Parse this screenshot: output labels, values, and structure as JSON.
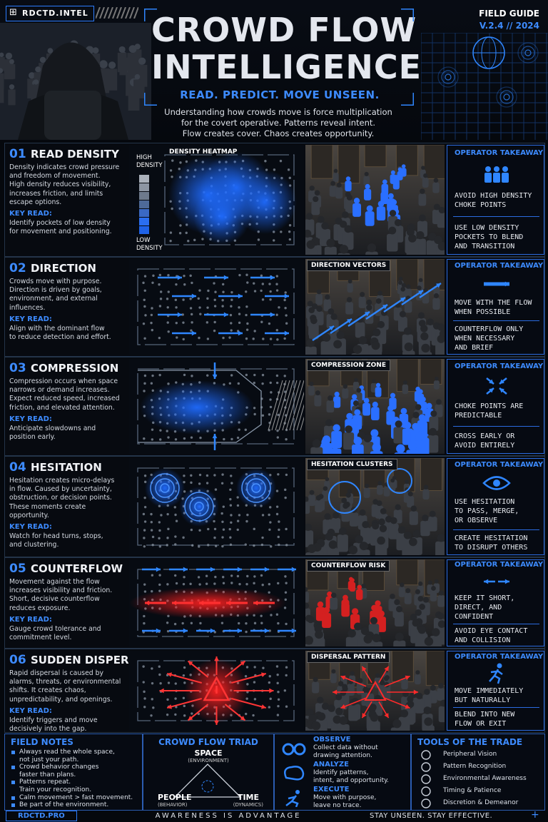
{
  "header": {
    "brand": "RDCTD.INTEL",
    "title": [
      "CROWD FLOW",
      "INTELLIGENCE"
    ],
    "tagline": "READ. PREDICT. MOVE UNSEEN.",
    "guide": "FIELD GUIDE",
    "version": "V.2.4 // 2024",
    "intro": [
      "Understanding how crowds move is force multiplication",
      "for the covert operative. Patterns reveal intent.",
      "Flow creates cover. Chaos creates opportunity."
    ]
  },
  "sections": [
    {
      "number": "01",
      "title": "READ DENSITY",
      "body": [
        "Density indicates crowd pressure",
        "and freedom of movement.",
        "High density reduces visibility,",
        "increases friction, and limits",
        "escape options."
      ],
      "key_label": "KEY READ:",
      "key": [
        "Identify pockets of low density",
        "for movement and positioning."
      ],
      "diagram_label": "DENSITY HEATMAP",
      "legend_high": [
        "HIGH",
        "DENSITY"
      ],
      "legend_low": [
        "LOW",
        "DENSITY"
      ],
      "takeaway_label": "OPERATOR TAKEAWAY",
      "takeaways": [
        [
          "AVOID HIGH DENSITY",
          "CHOKE POINTS"
        ],
        [
          "USE LOW DENSITY",
          "POCKETS TO BLEND",
          "AND TRANSITION"
        ]
      ]
    },
    {
      "number": "02",
      "title": "DIRECTION",
      "body": [
        "Crowds move with purpose.",
        "Direction is driven by goals,",
        "environment, and external",
        "influences."
      ],
      "key_label": "KEY READ:",
      "key": [
        "Align with the dominant flow",
        "to reduce detection and effort."
      ],
      "photo_label": "DIRECTION VECTORS",
      "takeaway_label": "OPERATOR TAKEAWAY",
      "takeaways": [
        [
          "MOVE WITH THE FLOW",
          "WHEN POSSIBLE"
        ],
        [
          "COUNTERFLOW ONLY",
          "WHEN NECESSARY",
          "AND BRIEF"
        ]
      ]
    },
    {
      "number": "03",
      "title": "COMPRESSION",
      "body": [
        "Compression occurs when space",
        "narrows or demand increases.",
        "Expect reduced speed, increased",
        "friction, and elevated attention."
      ],
      "key_label": "KEY READ:",
      "key": [
        "Anticipate slowdowns and",
        "position early."
      ],
      "photo_label": "COMPRESSION ZONE",
      "takeaway_label": "OPERATOR TAKEAWAY",
      "takeaways": [
        [
          "CHOKE POINTS ARE",
          "PREDICTABLE"
        ],
        [
          "CROSS EARLY OR",
          "AVOID ENTIRELY"
        ]
      ]
    },
    {
      "number": "04",
      "title": "HESITATION",
      "body": [
        "Hesitation creates micro-delays",
        "in flow. Caused by uncertainty,",
        "obstruction, or decision points.",
        "These moments create",
        "opportunity."
      ],
      "key_label": "KEY READ:",
      "key": [
        "Watch for head turns, stops,",
        "and clustering."
      ],
      "photo_label": "HESITATION CLUSTERS",
      "takeaway_label": "OPERATOR TAKEAWAY",
      "takeaways": [
        [
          "USE HESITATION",
          "TO PASS, MERGE,",
          "OR OBSERVE"
        ],
        [
          "CREATE HESITATION",
          "TO DISRUPT OTHERS"
        ]
      ]
    },
    {
      "number": "05",
      "title": "COUNTERFLOW",
      "body": [
        "Movement against the flow",
        "increases visibility and friction.",
        "Short, decisive counterflow",
        "reduces exposure."
      ],
      "key_label": "KEY READ:",
      "key": [
        "Gauge crowd tolerance and",
        "commitment level."
      ],
      "photo_label": "COUNTERFLOW RISK",
      "takeaway_label": "OPERATOR TAKEAWAY",
      "takeaways": [
        [
          "KEEP IT SHORT,",
          "DIRECT, AND",
          "CONFIDENT"
        ],
        [
          "AVOID EYE CONTACT",
          "AND COLLISION"
        ]
      ]
    },
    {
      "number": "06",
      "title": "SUDDEN DISPERSAL",
      "body": [
        "Rapid dispersal is caused by",
        "alarms, threats, or environmental",
        "shifts. It creates chaos,",
        "unpredictability, and openings."
      ],
      "key_label": "KEY READ:",
      "key": [
        "Identify triggers and move",
        "decisively into the gap."
      ],
      "photo_label": "DISPERSAL PATTERN",
      "takeaway_label": "OPERATOR TAKEAWAY",
      "takeaways": [
        [
          "MOVE IMMEDIATELY",
          "BUT NATURALLY"
        ],
        [
          "BLEND INTO NEW",
          "FLOW OR EXIT"
        ]
      ]
    }
  ],
  "field_notes": {
    "title": "FIELD NOTES",
    "items": [
      [
        "Always read the whole space,",
        "not just your path."
      ],
      [
        "Crowd behavior changes",
        "faster than plans."
      ],
      [
        "Patterns repeat.",
        "Train your recognition."
      ],
      [
        "Calm movement > fast movement."
      ],
      [
        "Be part of the environment."
      ]
    ]
  },
  "triad": {
    "title": "CROWD FLOW TRIAD",
    "top": [
      "SPACE",
      "(ENVIRONMENT)"
    ],
    "left": [
      "PEOPLE",
      "(BEHAVIOR)"
    ],
    "right": [
      "TIME",
      "(DYNAMICS)"
    ]
  },
  "actions": [
    {
      "name": "OBSERVE",
      "text": [
        "Collect data without",
        "drawing attention."
      ]
    },
    {
      "name": "ANALYZE",
      "text": [
        "Identify patterns,",
        "intent, and opportunity."
      ]
    },
    {
      "name": "EXECUTE",
      "text": [
        "Move with purpose,",
        "leave no trace."
      ]
    }
  ],
  "tools": {
    "title": "TOOLS OF THE TRADE",
    "items": [
      "Peripheral Vision",
      "Pattern Recognition",
      "Environmental Awareness",
      "Timing & Patience",
      "Discretion & Demeanor"
    ]
  },
  "footer": {
    "site": "RDCTD.PRO",
    "motto": "AWARENESS IS ADVANTAGE",
    "signoff": "STAY UNSEEN. STAY EFFECTIVE."
  }
}
